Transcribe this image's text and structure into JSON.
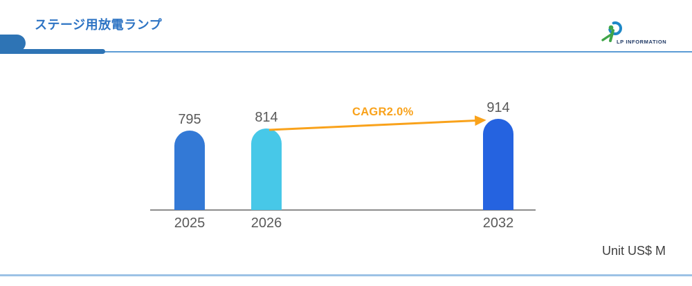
{
  "page": {
    "title": "ステージ用放電ランプ"
  },
  "logo": {
    "text": "LP INFORMATION",
    "text_color": "#1F3864",
    "icon_blue": "#1E88C7",
    "icon_green": "#3FA548"
  },
  "chart_data": {
    "type": "bar",
    "title": "ステージ用放電ランプ",
    "categories": [
      "2025",
      "2026",
      "2032"
    ],
    "values": [
      795,
      814,
      914
    ],
    "value_labels": [
      "795",
      "814",
      "914"
    ],
    "bar_colors": [
      "#3379D6",
      "#47C8E8",
      "#2563E0"
    ],
    "ylim": [
      0,
      1000
    ],
    "grid": false,
    "legend": false,
    "baseline_color": "#8C8C8C",
    "label_color": "#595959",
    "annotation": {
      "type": "arrow",
      "label": "CAGR2.0%",
      "from_category": "2026",
      "to_category": "2032",
      "color": "#F9A21B"
    },
    "unit_label": "Unit US$ M"
  },
  "theme": {
    "title_color": "#2E74C4",
    "accent_tab_color": "#2E74B5",
    "header_rule_color": "#5B9BD5",
    "footer_rule_color": "#9CC2E5",
    "unit_text_color": "#3F3F3F"
  }
}
